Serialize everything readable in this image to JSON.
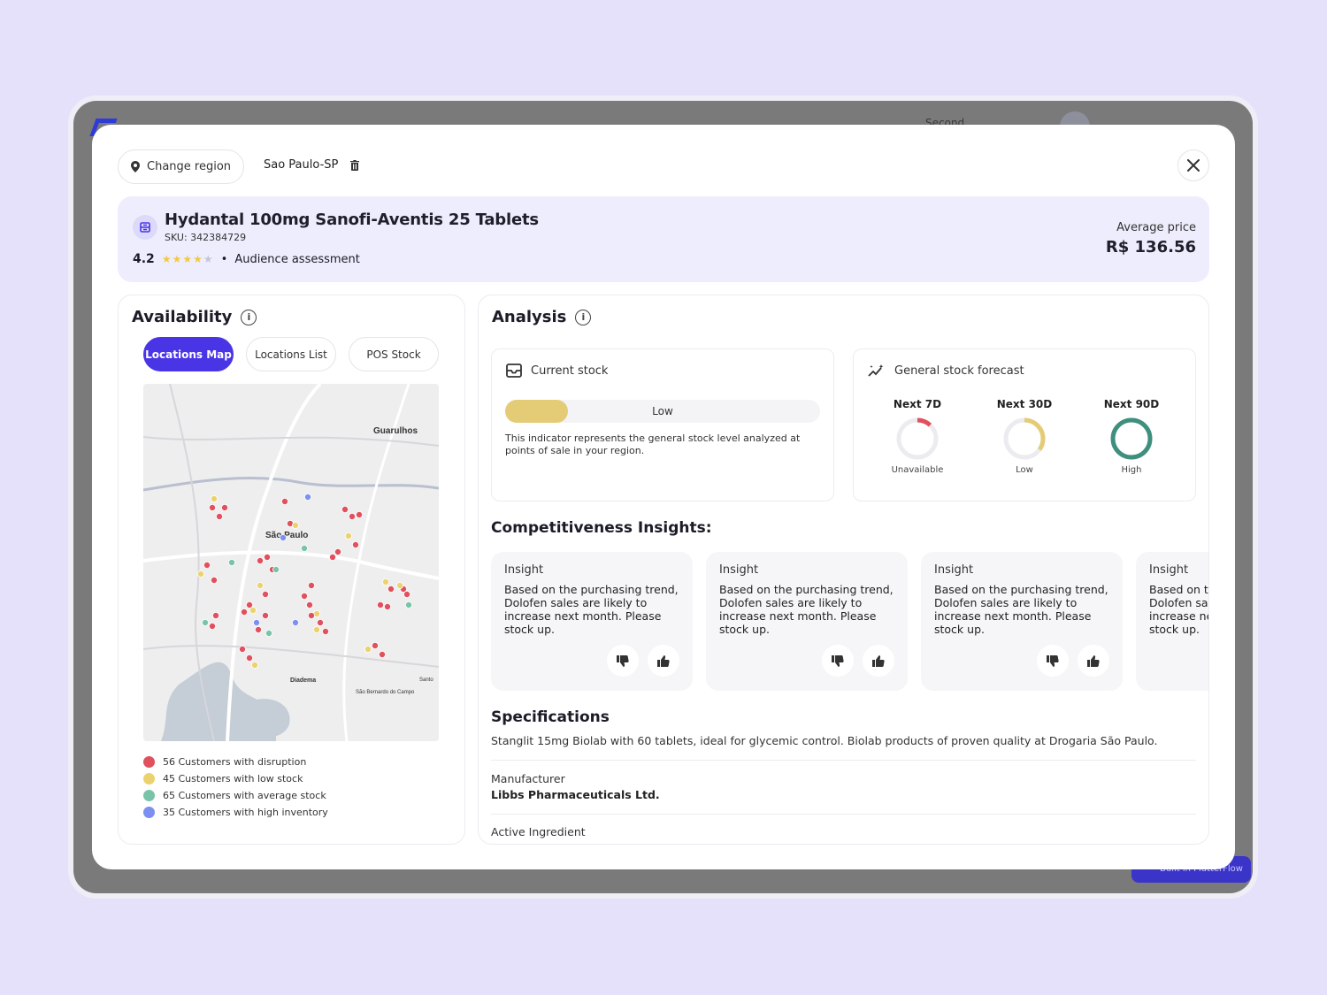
{
  "background_app": {
    "top_text": "Second",
    "chip_label": "Built in FlutterFlow"
  },
  "header": {
    "change_region_label": "Change region",
    "region_name": "Sao Paulo-SP"
  },
  "product": {
    "title": "Hydantal 100mg Sanofi-Aventis 25 Tablets",
    "sku_label": "SKU:",
    "sku": "342384729",
    "rating": "4.2",
    "rating_stars_filled": 4,
    "rating_stars_total": 5,
    "separator": "•",
    "rating_caption": "Audience assessment",
    "avg_price_label": "Average price",
    "avg_price": "R$ 136.56"
  },
  "availability": {
    "title": "Availability",
    "tabs": [
      {
        "label": "Locations Map",
        "active": true
      },
      {
        "label": "Locations List",
        "active": false
      },
      {
        "label": "POS Stock",
        "active": false
      }
    ],
    "map_labels": {
      "city": "São Paulo",
      "guarulhos": "Guarulhos",
      "diadema": "Diadema",
      "sbc": "São Bernardo do Campo",
      "santo": "Santo"
    },
    "legend": [
      {
        "label": "56 Customers with disruption",
        "color": "#e0505e"
      },
      {
        "label": "45 Customers with low stock",
        "color": "#ecd26f"
      },
      {
        "label": "65 Customers with average stock",
        "color": "#79c4a9"
      },
      {
        "label": "35 Customers with high inventory",
        "color": "#7b90f0"
      }
    ]
  },
  "analysis": {
    "title": "Analysis",
    "current_stock": {
      "title": "Current stock",
      "level_label": "Low",
      "level_fraction": 0.2,
      "description": "This indicator represents the general stock level analyzed at points of sale in your region."
    },
    "forecast": {
      "title": "General stock forecast",
      "items": [
        {
          "period": "Next 7D",
          "status": "Unavailable",
          "fraction": 0.12,
          "color": "#e0505e"
        },
        {
          "period": "Next 30D",
          "status": "Low",
          "fraction": 0.35,
          "color": "#e4cc77"
        },
        {
          "period": "Next 90D",
          "status": "High",
          "fraction": 1.0,
          "color": "#3f8f7e"
        }
      ]
    },
    "competitiveness_title": "Competitiveness Insights:",
    "insights": [
      {
        "heading": "Insight",
        "text": "Based on the purchasing trend, Dolofen sales are likely to increase next month. Please stock up."
      },
      {
        "heading": "Insight",
        "text": "Based on the purchasing trend, Dolofen sales are likely to increase next month. Please stock up."
      },
      {
        "heading": "Insight",
        "text": "Based on the purchasing trend, Dolofen sales are likely to increase next month. Please stock up."
      },
      {
        "heading": "Insight",
        "text": "Based on the purchasing trend, Dolofen sales are likely to increase next month. Please stock up."
      }
    ],
    "specifications": {
      "title": "Specifications",
      "description": "Stanglit 15mg Biolab with 60 tablets, ideal for glycemic control. Biolab products of proven quality at Drogaria São Paulo.",
      "manufacturer_label": "Manufacturer",
      "manufacturer_value": "Libbs Pharmaceuticals Ltd.",
      "active_ingredient_label": "Active Ingredient"
    }
  }
}
